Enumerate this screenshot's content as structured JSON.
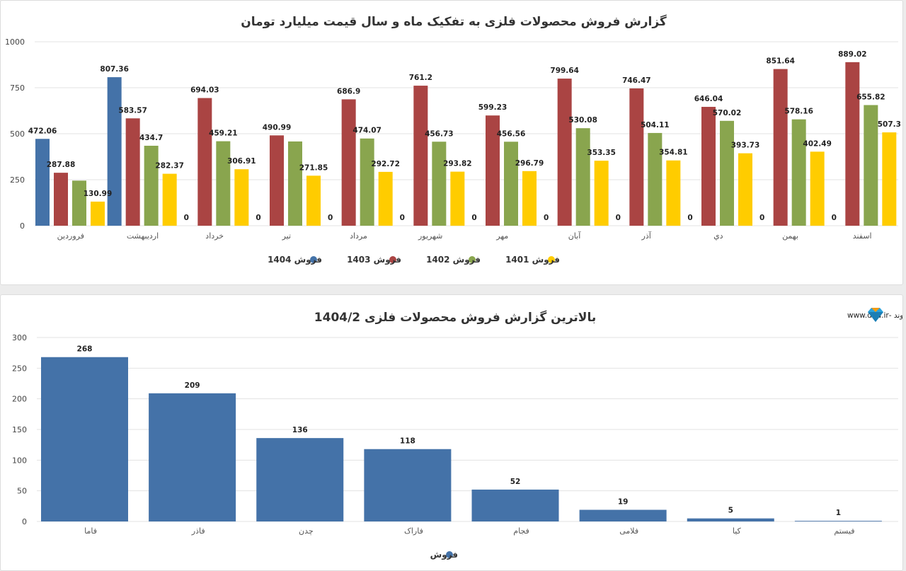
{
  "chart_data": [
    {
      "type": "bar",
      "title": "گزارش فروش محصولات فلزی به تفکیک ماه و سال قیمت میلیارد تومان",
      "xlabel": "",
      "ylabel": "",
      "ylim": [
        0,
        1000
      ],
      "yticks": [
        "0",
        "250",
        "500",
        "750",
        "1000"
      ],
      "grid": true,
      "legend_position": "bottom",
      "categories": [
        "فروردین",
        "اردیبهشت",
        "خرداد",
        "تیر",
        "مرداد",
        "شهریور",
        "مهر",
        "آبان",
        "آذر",
        "دي",
        "بهمن",
        "اسفند"
      ],
      "series": [
        {
          "name": "فروش 1404",
          "color": "#4472a8",
          "values": [
            472.06,
            807.36,
            0,
            0,
            0,
            0,
            0,
            0,
            0,
            0,
            0,
            0
          ],
          "labels": [
            "472.06",
            "807.36",
            "0",
            "0",
            "0",
            "0",
            "0",
            "0",
            "0",
            "0",
            "0",
            "0"
          ]
        },
        {
          "name": "فروش 1403",
          "color": "#aa4443",
          "values": [
            287.88,
            583.57,
            694.03,
            490.99,
            686.9,
            761.2,
            599.23,
            799.64,
            746.47,
            646.04,
            851.64,
            889.02
          ],
          "labels": [
            "287.88",
            "583.57",
            "694.03",
            "490.99",
            "686.9",
            "761.2",
            "599.23",
            "799.64",
            "746.47",
            "646.04",
            "851.64",
            "889.02"
          ]
        },
        {
          "name": "فروش 1402",
          "color": "#89a54e",
          "values": [
            245,
            434.7,
            459.21,
            458,
            474.07,
            456.73,
            456.56,
            530.08,
            504.11,
            570.02,
            578.16,
            655.82
          ],
          "labels": [
            "",
            "434.7",
            "459.21",
            "",
            "474.07",
            "456.73",
            "456.56",
            "530.08",
            "504.11",
            "570.02",
            "578.16",
            "655.82"
          ]
        },
        {
          "name": "فروش 1401",
          "color": "#ffcc00",
          "values": [
            130.99,
            282.37,
            306.91,
            271.85,
            292.72,
            293.82,
            296.79,
            353.35,
            354.81,
            393.73,
            402.49,
            507.3
          ],
          "labels": [
            "130.99",
            "282.37",
            "306.91",
            "271.85",
            "292.72",
            "293.82",
            "296.79",
            "353.35",
            "354.81",
            "393.73",
            "402.49",
            "507.3"
          ]
        }
      ]
    },
    {
      "type": "bar",
      "title": "بالاترین گزارش فروش محصولات فلزی 1404/2",
      "xlabel": "",
      "ylabel": "",
      "ylim": [
        0,
        300
      ],
      "yticks": [
        "0",
        "50",
        "100",
        "150",
        "200",
        "250",
        "300"
      ],
      "grid": true,
      "legend_position": "bottom",
      "categories": [
        "فاما",
        "فاذر",
        "چدن",
        "فاراک",
        "فجام",
        "فلامی",
        "کیا",
        "فیستم"
      ],
      "series": [
        {
          "name": "فروش",
          "color": "#4472a8",
          "values": [
            268,
            209,
            136,
            118,
            52,
            19,
            5,
            1
          ],
          "labels": [
            "268",
            "209",
            "136",
            "118",
            "52",
            "19",
            "5",
            "1"
          ]
        }
      ]
    }
  ],
  "branding": {
    "text": "نرم افزار تحلیل گر بورس - دایموند -www.dnd.ir",
    "icon": "diamond-icon",
    "icon_colors": [
      "#2ba3dc",
      "#f39c12"
    ]
  }
}
